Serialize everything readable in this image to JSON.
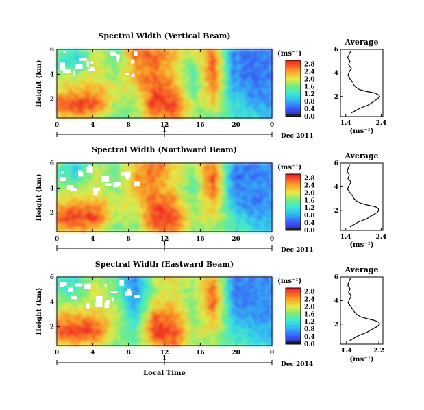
{
  "figure": {
    "xlabel": "Local Time",
    "date_label": "Dec 2014",
    "day_label": "1",
    "ylabel": "Height (km)",
    "cbar_unit": "(ms⁻¹)",
    "avg_title": "Average",
    "avg_xlabel": "(ms⁻¹)"
  },
  "chart_data": [
    {
      "type": "heatmap",
      "title": "Spectral Width (Vertical Beam)",
      "xlabel": "Local Time",
      "ylabel": "Height (km)",
      "x_ticks": [
        "0",
        "4",
        "8",
        "12",
        "16",
        "20",
        "0"
      ],
      "xlim": [
        0,
        24
      ],
      "y_ticks": [
        "2",
        "4",
        "6"
      ],
      "ylim": [
        0.5,
        6
      ],
      "colorbar": {
        "unit": "(ms⁻¹)",
        "ticks": [
          "0.0",
          "0.4",
          "0.8",
          "1.2",
          "1.6",
          "2.0",
          "2.4",
          "2.8"
        ],
        "range": [
          0,
          3.0
        ]
      },
      "approx_field_ms": {
        "height_km": [
          6,
          5,
          4,
          3,
          2,
          1
        ],
        "local_time_h": [
          0,
          2,
          4,
          6,
          8,
          10,
          12,
          14,
          16,
          18,
          20,
          22
        ],
        "values": [
          [
            1.6,
            1.2,
            2.0,
            1.4,
            2.8,
            2.6,
            2.4,
            2.0,
            2.7,
            0.7,
            0.6,
            0.6
          ],
          [
            1.4,
            1.1,
            2.2,
            1.5,
            2.5,
            2.8,
            2.2,
            1.6,
            2.8,
            0.6,
            0.5,
            0.6
          ],
          [
            1.8,
            1.9,
            2.0,
            1.8,
            2.4,
            2.7,
            2.3,
            1.4,
            2.9,
            0.7,
            0.5,
            0.6
          ],
          [
            2.2,
            2.4,
            2.4,
            2.0,
            2.0,
            2.9,
            2.6,
            1.5,
            2.6,
            0.8,
            0.6,
            0.6
          ],
          [
            2.8,
            3.0,
            2.9,
            1.8,
            1.8,
            3.0,
            2.9,
            1.8,
            2.2,
            1.2,
            0.9,
            0.7
          ],
          [
            2.0,
            2.4,
            2.0,
            1.6,
            1.7,
            2.4,
            2.6,
            1.7,
            1.6,
            1.3,
            1.2,
            0.9
          ]
        ]
      }
    },
    {
      "type": "heatmap",
      "title": "Spectral Width (Northward Beam)",
      "xlabel": "Local Time",
      "ylabel": "Height (km)",
      "x_ticks": [
        "0",
        "4",
        "8",
        "12",
        "16",
        "20",
        "0"
      ],
      "xlim": [
        0,
        24
      ],
      "y_ticks": [
        "2",
        "4",
        "6"
      ],
      "ylim": [
        0.5,
        6
      ],
      "colorbar": {
        "unit": "(ms⁻¹)",
        "ticks": [
          "0.0",
          "0.4",
          "0.8",
          "1.2",
          "1.6",
          "2.0",
          "2.4",
          "2.8"
        ],
        "range": [
          0,
          3.0
        ]
      },
      "approx_field_ms": {
        "height_km": [
          6,
          5,
          4,
          3,
          2,
          1
        ],
        "local_time_h": [
          0,
          2,
          4,
          6,
          8,
          10,
          12,
          14,
          16,
          18,
          20,
          22
        ],
        "values": [
          [
            1.6,
            1.0,
            1.8,
            1.5,
            2.4,
            2.8,
            2.2,
            1.8,
            2.6,
            0.7,
            0.6,
            0.6
          ],
          [
            1.4,
            1.2,
            2.0,
            1.5,
            2.4,
            2.6,
            2.1,
            1.6,
            2.9,
            0.6,
            0.6,
            0.6
          ],
          [
            1.8,
            2.0,
            1.9,
            1.7,
            2.3,
            2.6,
            2.2,
            1.5,
            2.8,
            0.7,
            0.6,
            0.7
          ],
          [
            2.2,
            2.5,
            2.4,
            2.0,
            2.0,
            2.8,
            2.6,
            1.6,
            2.4,
            0.9,
            0.6,
            0.7
          ],
          [
            2.9,
            3.0,
            2.9,
            1.8,
            1.8,
            3.0,
            2.9,
            1.9,
            2.1,
            1.3,
            0.9,
            0.8
          ],
          [
            2.0,
            2.3,
            2.1,
            1.6,
            1.7,
            2.5,
            2.6,
            1.7,
            1.6,
            1.4,
            1.2,
            1.0
          ]
        ]
      }
    },
    {
      "type": "heatmap",
      "title": "Spectral Width (Eastward Beam)",
      "xlabel": "Local Time",
      "ylabel": "Height (km)",
      "x_ticks": [
        "0",
        "4",
        "8",
        "12",
        "16",
        "20",
        "0"
      ],
      "xlim": [
        0,
        24
      ],
      "y_ticks": [
        "2",
        "4",
        "6"
      ],
      "ylim": [
        0.5,
        6
      ],
      "colorbar": {
        "unit": "(ms⁻¹)",
        "ticks": [
          "0.0",
          "0.4",
          "0.8",
          "1.2",
          "1.6",
          "2.0",
          "2.4",
          "2.8"
        ],
        "range": [
          0,
          3.0
        ]
      },
      "approx_field_ms": {
        "height_km": [
          6,
          5,
          4,
          3,
          2,
          1
        ],
        "local_time_h": [
          0,
          2,
          4,
          6,
          8,
          10,
          12,
          14,
          16,
          18,
          20,
          22
        ],
        "values": [
          [
            1.5,
            1.2,
            1.9,
            1.4,
            0.6,
            2.0,
            2.2,
            1.8,
            2.5,
            0.7,
            0.6,
            0.6
          ],
          [
            1.4,
            1.3,
            2.1,
            1.6,
            0.6,
            1.8,
            2.0,
            1.7,
            2.8,
            0.6,
            0.6,
            0.7
          ],
          [
            1.8,
            1.9,
            2.0,
            1.8,
            0.7,
            2.2,
            2.3,
            1.6,
            2.8,
            0.7,
            0.6,
            0.7
          ],
          [
            2.3,
            2.5,
            2.4,
            2.0,
            1.0,
            2.8,
            2.6,
            1.7,
            2.4,
            1.0,
            0.7,
            0.7
          ],
          [
            2.9,
            3.0,
            2.9,
            1.8,
            1.4,
            3.0,
            2.9,
            1.9,
            2.1,
            1.3,
            1.0,
            0.8
          ],
          [
            2.0,
            2.3,
            2.1,
            1.7,
            1.5,
            2.4,
            2.6,
            1.7,
            1.6,
            1.4,
            1.2,
            1.0
          ]
        ]
      }
    },
    {
      "type": "line",
      "title": "Average",
      "xlabel": "(ms⁻¹)",
      "x_ticks": [
        "1.4",
        "2.4"
      ],
      "xlim": [
        1.25,
        2.45
      ],
      "y_ticks": [
        "2",
        "4",
        "6"
      ],
      "ylim": [
        0.3,
        6
      ],
      "series": [
        {
          "x": [
            1.55,
            1.5,
            1.45,
            1.52,
            1.48,
            1.56,
            1.5,
            1.46,
            1.52,
            1.6,
            1.62,
            1.68,
            1.78,
            1.95,
            2.22,
            2.32,
            2.36,
            2.3,
            2.2,
            2.05,
            1.8,
            1.55
          ],
          "y": [
            5.9,
            5.6,
            5.3,
            5.0,
            4.7,
            4.4,
            4.1,
            3.8,
            3.5,
            3.2,
            3.0,
            2.8,
            2.6,
            2.45,
            2.3,
            2.15,
            2.0,
            1.8,
            1.6,
            1.3,
            1.0,
            0.6
          ]
        }
      ]
    },
    {
      "type": "line",
      "title": "Average",
      "xlabel": "(ms⁻¹)",
      "x_ticks": [
        "1.4",
        "2.4"
      ],
      "xlim": [
        1.25,
        2.45
      ],
      "y_ticks": [
        "2",
        "4",
        "6"
      ],
      "ylim": [
        0.3,
        6
      ],
      "series": [
        {
          "x": [
            1.52,
            1.47,
            1.44,
            1.5,
            1.46,
            1.55,
            1.49,
            1.45,
            1.52,
            1.6,
            1.63,
            1.7,
            1.82,
            2.0,
            2.24,
            2.32,
            2.34,
            2.28,
            2.16,
            2.0,
            1.75,
            1.52
          ],
          "y": [
            5.9,
            5.6,
            5.3,
            5.0,
            4.7,
            4.4,
            4.1,
            3.8,
            3.5,
            3.2,
            3.0,
            2.8,
            2.6,
            2.45,
            2.3,
            2.15,
            2.0,
            1.8,
            1.6,
            1.3,
            1.0,
            0.6
          ]
        }
      ]
    },
    {
      "type": "line",
      "title": "Average",
      "xlabel": "(ms⁻¹)",
      "x_ticks": [
        "1.4",
        "2.2"
      ],
      "xlim": [
        1.25,
        2.3
      ],
      "y_ticks": [
        "2",
        "4",
        "6"
      ],
      "ylim": [
        0.3,
        6
      ],
      "series": [
        {
          "x": [
            1.5,
            1.46,
            1.43,
            1.49,
            1.45,
            1.52,
            1.47,
            1.44,
            1.5,
            1.57,
            1.6,
            1.66,
            1.76,
            1.92,
            2.1,
            2.2,
            2.22,
            2.16,
            2.05,
            1.9,
            1.68,
            1.48
          ],
          "y": [
            5.9,
            5.6,
            5.3,
            5.0,
            4.7,
            4.4,
            4.1,
            3.8,
            3.5,
            3.2,
            3.0,
            2.8,
            2.6,
            2.45,
            2.3,
            2.15,
            2.0,
            1.8,
            1.6,
            1.3,
            1.0,
            0.6
          ]
        }
      ]
    }
  ]
}
